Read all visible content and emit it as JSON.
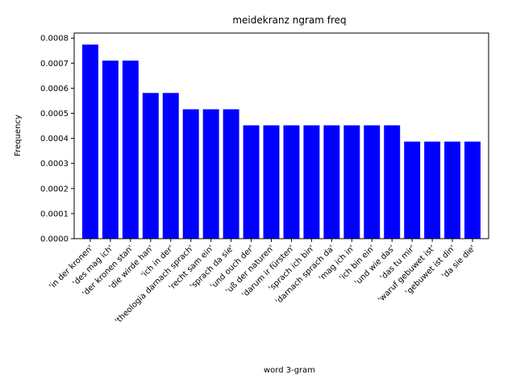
{
  "chart_data": {
    "type": "bar",
    "title": "meidekranz ngram freq",
    "xlabel": "word 3-gram",
    "ylabel": "Frequency",
    "ylim": [
      0,
      0.00082
    ],
    "yticks": [
      "0.0000",
      "0.0001",
      "0.0002",
      "0.0003",
      "0.0004",
      "0.0005",
      "0.0006",
      "0.0007",
      "0.0008"
    ],
    "grid": false,
    "bar_color": "#0000ff",
    "categories": [
      "'in der kronen'",
      "'des mag ich'",
      "'der kronen stan'",
      "'die wirde han'",
      "'ich in der'",
      "'theologia darnach sprach'",
      "'recht sam ein'",
      "'sprach da sie'",
      "'und ouch der'",
      "'uß der naturen'",
      "'darum ir fürsten'",
      "'sprach ich bin'",
      "'darnach sprach da'",
      "'mag ich in'",
      "'ich bin ein'",
      "'und wie das'",
      "'das tu mir'",
      "'waruf gebuwet ist'",
      "'gebuwet ist din'",
      "'da sie die'"
    ],
    "values": [
      0.000774,
      0.00071,
      0.00071,
      0.000581,
      0.000581,
      0.000516,
      0.000516,
      0.000516,
      0.000452,
      0.000452,
      0.000452,
      0.000452,
      0.000452,
      0.000452,
      0.000452,
      0.000452,
      0.000387,
      0.000387,
      0.000387,
      0.000387
    ]
  }
}
